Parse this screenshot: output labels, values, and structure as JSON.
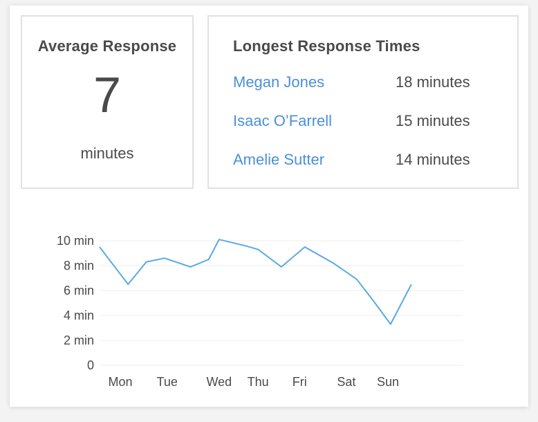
{
  "average": {
    "title": "Average Response",
    "value": "7",
    "unit": "minutes"
  },
  "longest": {
    "title": "Longest Response Times",
    "rows": [
      {
        "name": "Megan Jones",
        "time": "18 minutes"
      },
      {
        "name": "Isaac O’Farrell",
        "time": "15 minutes"
      },
      {
        "name": "Amelie Sutter",
        "time": "14 minutes"
      }
    ]
  },
  "colors": {
    "link": "#4a90d9",
    "line": "#5aa9e6",
    "grid": "#ececec"
  },
  "chart_data": {
    "type": "line",
    "title": "",
    "xlabel": "",
    "ylabel": "",
    "x_tick_labels": [
      "Mon",
      "Tue",
      "Wed",
      "Thu",
      "Fri",
      "Sat",
      "Sun"
    ],
    "y_tick_labels": [
      "0",
      "2 min",
      "4 min",
      "6 min",
      "8 min",
      "10 min"
    ],
    "y_ticks": [
      0,
      2,
      4,
      6,
      8,
      10
    ],
    "ylim": [
      0,
      10
    ],
    "x_range": [
      0,
      14
    ],
    "grid": true,
    "legend": false,
    "series": [
      {
        "x": [
          0,
          1.1,
          1.8,
          2.5,
          3.5,
          4.2,
          4.6,
          5.6,
          6.1,
          7.0,
          7.9,
          9.0,
          9.9,
          10.6,
          11.2,
          12.0
        ],
        "values": [
          9.5,
          6.5,
          8.3,
          8.6,
          7.9,
          8.5,
          10.1,
          9.6,
          9.3,
          7.9,
          9.5,
          8.2,
          6.9,
          5.0,
          3.3,
          6.5
        ]
      }
    ],
    "x_tick_positions": [
      0.8,
      2.6,
      4.6,
      6.1,
      7.7,
      9.5,
      11.1
    ]
  }
}
